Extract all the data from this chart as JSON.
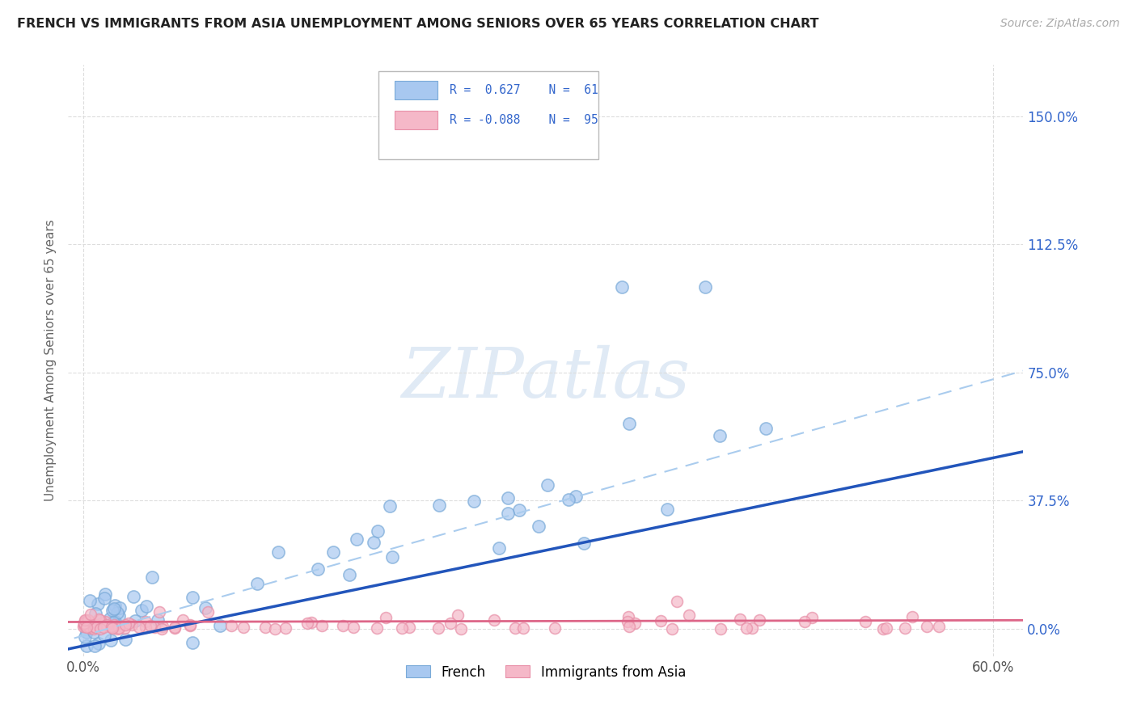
{
  "title": "FRENCH VS IMMIGRANTS FROM ASIA UNEMPLOYMENT AMONG SENIORS OVER 65 YEARS CORRELATION CHART",
  "source": "Source: ZipAtlas.com",
  "ylabel": "Unemployment Among Seniors over 65 years",
  "ytick_labels": [
    "0.0%",
    "37.5%",
    "75.0%",
    "112.5%",
    "150.0%"
  ],
  "ytick_values": [
    0.0,
    37.5,
    75.0,
    112.5,
    150.0
  ],
  "xtick_labels": [
    "0.0%",
    "60.0%"
  ],
  "xtick_values": [
    0.0,
    60.0
  ],
  "xlim": [
    -1.0,
    62.0
  ],
  "ylim": [
    -8.0,
    165.0
  ],
  "french_R": 0.627,
  "french_N": 61,
  "asia_R": -0.088,
  "asia_N": 95,
  "french_color": "#a8c8f0",
  "french_edge_color": "#7aaad8",
  "asia_color": "#f5b8c8",
  "asia_edge_color": "#e890a8",
  "french_line_color": "#2255bb",
  "asia_line_color": "#dd6688",
  "dashed_line_color": "#aaccee",
  "watermark_color": "#e0eaf5",
  "legend_text_color": "#3366cc",
  "ytick_color": "#3366cc",
  "background_color": "#ffffff",
  "grid_color": "#dddddd"
}
